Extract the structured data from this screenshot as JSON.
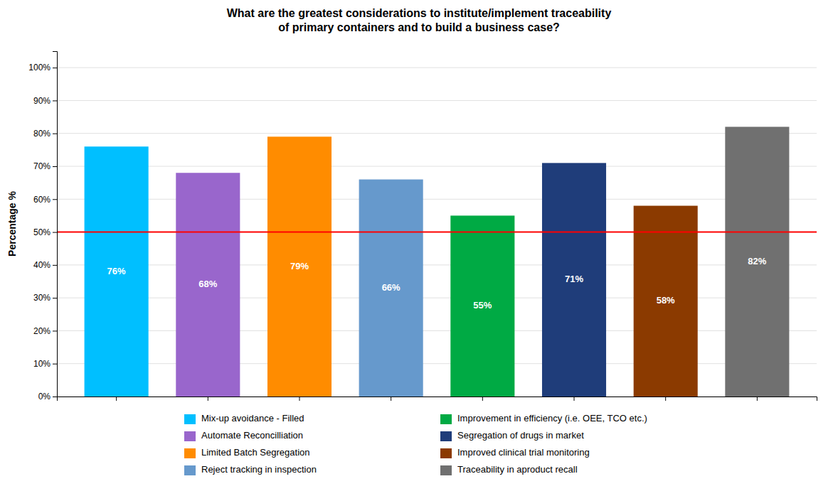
{
  "chart_data": {
    "type": "bar",
    "title": "What are the greatest considerations to institute/implement traceability\nof primary containers and to build a business case?",
    "ylabel": "Percentage %",
    "categories": [
      null,
      null,
      null,
      null,
      null,
      null,
      null,
      null
    ],
    "values": [
      76,
      68,
      79,
      66,
      55,
      71,
      58,
      82
    ],
    "value_labels": [
      "76%",
      "68%",
      "79%",
      "66%",
      "55%",
      "71%",
      "58%",
      "82%"
    ],
    "data_labels": true,
    "colors": [
      "#00BFFF",
      "#9966CC",
      "#FF8C00",
      "#6699CC",
      "#00AA44",
      "#1F3D7A",
      "#8B3A00",
      "#707070"
    ],
    "ylim": [
      0,
      105
    ],
    "yticks": [
      {
        "value": 0,
        "label": "0%"
      },
      {
        "value": 10,
        "label": "10%"
      },
      {
        "value": 20,
        "label": "20%"
      },
      {
        "value": 30,
        "label": "30%"
      },
      {
        "value": 40,
        "label": "40%"
      },
      {
        "value": 50,
        "label": "50%"
      },
      {
        "value": 60,
        "label": "60%"
      },
      {
        "value": 70,
        "label": "70%"
      },
      {
        "value": 80,
        "label": "80%"
      },
      {
        "value": 90,
        "label": "90%"
      },
      {
        "value": 100,
        "label": "100%"
      }
    ],
    "grid": true,
    "hline": {
      "y": 50,
      "color": "#FF0000"
    },
    "legend": "bottom",
    "legend_labels": [
      "Mix-up avoidance - Filled",
      "Automate Reconcilliation",
      "Limited Batch Segregation",
      "Reject tracking in inspection",
      "Improvement in efficiency (i.e. OEE, TCO etc.)",
      "Segregation of drugs in market",
      "Improved clinical trial monitoring",
      "Traceability in aproduct recall"
    ]
  }
}
